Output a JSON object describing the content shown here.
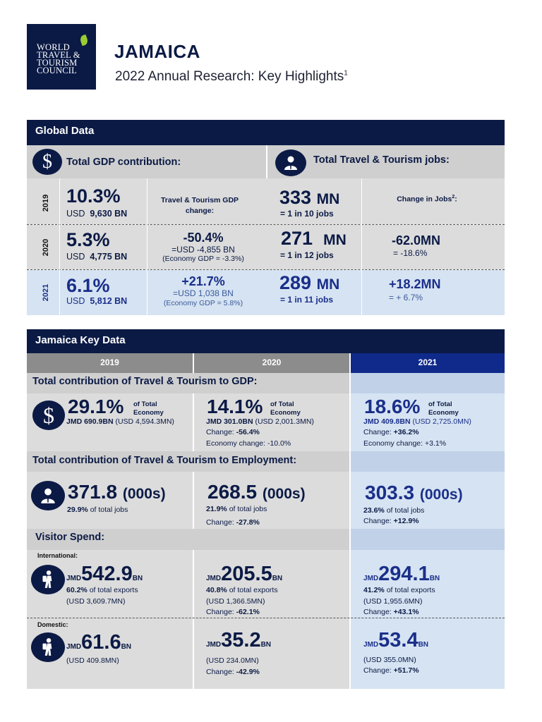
{
  "logo": {
    "line1": "WORLD",
    "line2": "TRAVEL &",
    "line3": "TOURISM",
    "line4": "COUNCIL"
  },
  "header": {
    "country": "JAMAICA",
    "subtitle": "2022 Annual Research: Key Highlights",
    "footnote": "1"
  },
  "global": {
    "title": "Global Data",
    "gdp_label": "Total GDP contribution:",
    "jobs_label": "Total Travel & Tourism jobs:",
    "gdp_change_head": "Travel & Tourism GDP change:",
    "jobs_change_head": "Change in Jobs",
    "jobs_change_sup": "2",
    "jobs_change_colon": ":",
    "rows": [
      {
        "year": "2019",
        "gdp_pct": "10.3%",
        "usd_prefix": "USD",
        "usd_val": "9,630 BN",
        "gdp_chg": "",
        "gdp_chg_usd": "",
        "gdp_chg_econ": "",
        "jobs": "333",
        "jobs_unit": "MN",
        "jobs_ratio": "= 1 in 10 jobs",
        "jobs_chg": "",
        "jobs_chg_pct": ""
      },
      {
        "year": "2020",
        "gdp_pct": "5.3%",
        "usd_prefix": "USD",
        "usd_val": "4,775 BN",
        "gdp_chg": "-50.4%",
        "gdp_chg_usd": "=USD -4,855 BN",
        "gdp_chg_econ": "(Economy GDP = -3.3%)",
        "jobs": "271",
        "jobs_unit": "MN",
        "jobs_ratio": "= 1 in 12 jobs",
        "jobs_chg": "-62.0MN",
        "jobs_chg_pct": "= -18.6%"
      },
      {
        "year": "2021",
        "gdp_pct": "6.1%",
        "usd_prefix": "USD",
        "usd_val": "5,812 BN",
        "gdp_chg": "+21.7%",
        "gdp_chg_usd": "=USD 1,038 BN",
        "gdp_chg_econ": "(Economy GDP = 5.8%)",
        "jobs": "289",
        "jobs_unit": "MN",
        "jobs_ratio": "= 1 in 11 jobs",
        "jobs_chg": "+18.2MN",
        "jobs_chg_pct": "= + 6.7%"
      }
    ]
  },
  "key": {
    "title": "Jamaica Key Data",
    "years": [
      "2019",
      "2020",
      "2021"
    ],
    "gdp_label": "Total contribution of Travel & Tourism to GDP:",
    "of_total": "of Total",
    "economy": "Economy",
    "gdp": [
      {
        "pct": "29.1%",
        "jmd": "JMD 690.9BN",
        "usd": "(USD 4,594.3MN)",
        "change_lbl": "",
        "change": "",
        "econ": ""
      },
      {
        "pct": "14.1%",
        "jmd": "JMD 301.0BN",
        "usd": "(USD 2,001.3MN)",
        "change_lbl": "Change: ",
        "change": "-56.4%",
        "econ": "Economy change: -10.0%"
      },
      {
        "pct": "18.6%",
        "jmd": "JMD 409.8BN",
        "usd": "(USD 2,725.0MN)",
        "change_lbl": "Change: ",
        "change": "+36.2%",
        "econ": "Economy change: +3.1%"
      }
    ],
    "emp_label": "Total contribution of Travel & Tourism to Employment:",
    "emp_unit": "(000s)",
    "emp": [
      {
        "val": "371.8",
        "pct": "29.9%",
        "rest": " of total jobs",
        "change_lbl": "",
        "change": ""
      },
      {
        "val": "268.5",
        "pct": "21.9%",
        "rest": " of total jobs",
        "change_lbl": "Change: ",
        "change": "-27.8%"
      },
      {
        "val": "303.3",
        "pct": "23.6%",
        "rest": " of total jobs",
        "change_lbl": "Change: ",
        "change": "+12.9%"
      }
    ],
    "visitor_label": "Visitor Spend:",
    "intl_label": "International:",
    "dom_label": "Domestic:",
    "jmd": "JMD",
    "bn": "BN",
    "intl": [
      {
        "val": "542.9",
        "pct": "60.2%",
        "rest": " of total exports",
        "usd": "(USD 3,609.7MN)",
        "change_lbl": "",
        "change": ""
      },
      {
        "val": "205.5",
        "pct": "40.8%",
        "rest": " of total exports",
        "usd": "(USD 1,366.5MN)",
        "change_lbl": "Change: ",
        "change": "-62.1%"
      },
      {
        "val": "294.1",
        "pct": "41.2%",
        "rest": " of total exports",
        "usd": "(USD 1,955.6MN)",
        "change_lbl": "Change: ",
        "change": "+43.1%"
      }
    ],
    "dom": [
      {
        "val": "61.6",
        "usd": "(USD 409.8MN)",
        "change_lbl": "",
        "change": ""
      },
      {
        "val": "35.2",
        "usd": "(USD 234.0MN)",
        "change_lbl": "Change: ",
        "change": "-42.9%"
      },
      {
        "val": "53.4",
        "usd": "(USD 355.0MN)",
        "change_lbl": "Change: ",
        "change": "+51.7%"
      }
    ]
  },
  "icons": {
    "dollar": "dollar-icon",
    "worker": "worker-icon",
    "traveler": "traveler-icon"
  },
  "colors": {
    "navy": "#0b1a45",
    "grey": "#dcdcdc",
    "light_blue": "#d6e3f2"
  }
}
